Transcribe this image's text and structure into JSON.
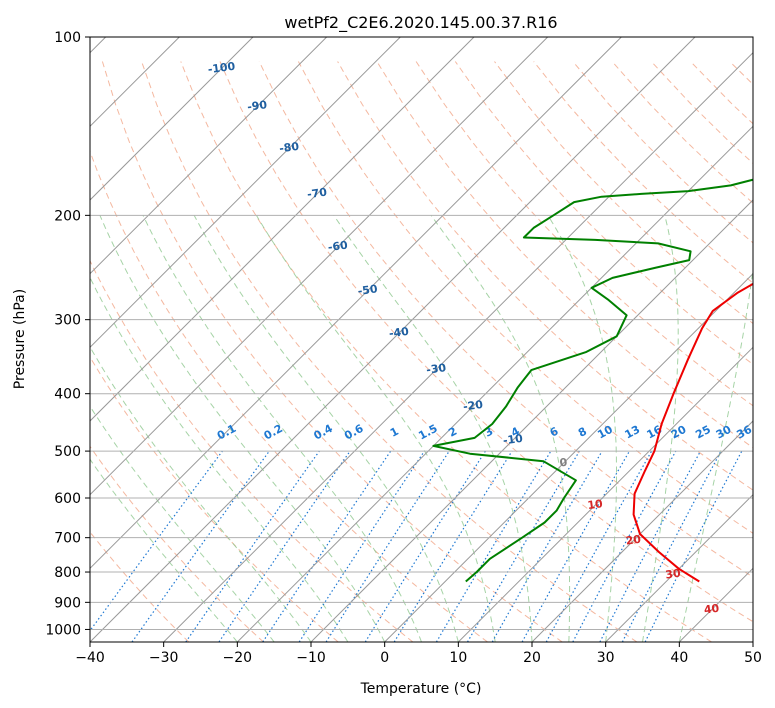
{
  "chart_data": {
    "type": "skew-t",
    "title": "wetPf2_C2E6.2020.145.00.37.R16",
    "xlabel": "Temperature (°C)",
    "ylabel": "Pressure (hPa)",
    "xlim": [
      -40,
      50
    ],
    "ylim": [
      1050,
      100
    ],
    "x_ticks": [
      -40,
      -30,
      -20,
      -10,
      0,
      10,
      20,
      30,
      40,
      50
    ],
    "y_ticks": [
      100,
      200,
      300,
      400,
      500,
      600,
      700,
      800,
      900,
      1000
    ],
    "x_tick_labels": [
      "−40",
      "−30",
      "−20",
      "−10",
      "0",
      "10",
      "20",
      "30",
      "40",
      "50"
    ],
    "y_tick_labels": [
      "100",
      "200",
      "300",
      "400",
      "500",
      "600",
      "700",
      "800",
      "900",
      "1000"
    ],
    "colors": {
      "temperature": "#ee0000",
      "dewpoint": "#008000",
      "isotherm": "#999999",
      "dry_adiabat": "#f0a080",
      "moist_adiabat": "#90c890",
      "mixing_ratio": "#1e78d2",
      "isotherm_label_cold": "#1f5fa0",
      "isotherm_label_warm": "#d62728",
      "isotherm_label_zero": "#808080"
    },
    "series": [
      {
        "name": "Temperature",
        "points": [
          [
            34.5,
            830
          ],
          [
            30,
            790
          ],
          [
            25,
            740
          ],
          [
            20,
            690
          ],
          [
            16.5,
            640
          ],
          [
            13.8,
            590
          ],
          [
            12.1,
            540
          ],
          [
            10.7,
            500
          ],
          [
            8.0,
            450
          ],
          [
            5.5,
            400
          ],
          [
            2.8,
            350
          ],
          [
            0.5,
            310
          ],
          [
            -0.4,
            290
          ],
          [
            0.5,
            270
          ],
          [
            2.5,
            250
          ],
          [
            5.5,
            230
          ],
          [
            9.0,
            215
          ],
          [
            11.5,
            205
          ],
          [
            12.3,
            195
          ],
          [
            12.5,
            180
          ],
          [
            12.4,
            165
          ],
          [
            12.0,
            150
          ],
          [
            11.2,
            140
          ],
          [
            10.6,
            130
          ],
          [
            10.5,
            120
          ],
          [
            11.0,
            112
          ],
          [
            11.2,
            105
          ],
          [
            11.2,
            100
          ]
        ]
      },
      {
        "name": "Dewpoint",
        "points": [
          [
            2.8,
            830
          ],
          [
            3.0,
            800
          ],
          [
            3.0,
            760
          ],
          [
            4.5,
            700
          ],
          [
            5.5,
            660
          ],
          [
            5.5,
            630
          ],
          [
            4.8,
            600
          ],
          [
            4.0,
            560
          ],
          [
            -3.0,
            520
          ],
          [
            -14.0,
            505
          ],
          [
            -20.0,
            490
          ],
          [
            -15.5,
            475
          ],
          [
            -15.0,
            450
          ],
          [
            -15.5,
            420
          ],
          [
            -16.5,
            390
          ],
          [
            -17.0,
            365
          ],
          [
            -12.0,
            340
          ],
          [
            -10.0,
            320
          ],
          [
            -11.5,
            295
          ],
          [
            -16.0,
            278
          ],
          [
            -20.0,
            265
          ],
          [
            -18.5,
            255
          ],
          [
            -14.0,
            245
          ],
          [
            -10.5,
            238
          ],
          [
            -11.5,
            230
          ],
          [
            -17.0,
            223
          ],
          [
            -26.0,
            220
          ],
          [
            -36.0,
            218
          ],
          [
            -36.0,
            210
          ],
          [
            -35.0,
            200
          ],
          [
            -34.0,
            190
          ],
          [
            -31.0,
            186
          ],
          [
            -26.0,
            184
          ],
          [
            -20.0,
            182
          ],
          [
            -15.0,
            178
          ],
          [
            -11.5,
            172
          ],
          [
            -8.5,
            163
          ],
          [
            -6.5,
            153
          ],
          [
            -4.5,
            144
          ],
          [
            -1.5,
            135
          ],
          [
            0.5,
            127
          ],
          [
            2.5,
            120
          ],
          [
            5.0,
            113
          ],
          [
            7.5,
            106
          ],
          [
            9.5,
            100
          ]
        ]
      }
    ],
    "isotherm_labels": [
      {
        "label": "-100",
        "t": -100,
        "p": 113
      },
      {
        "label": "-90",
        "t": -90,
        "p": 131
      },
      {
        "label": "-80",
        "t": -80,
        "p": 154
      },
      {
        "label": "-70",
        "t": -70,
        "p": 184
      },
      {
        "label": "-60",
        "t": -60,
        "p": 226
      },
      {
        "label": "-50",
        "t": -50,
        "p": 268
      },
      {
        "label": "-40",
        "t": -40,
        "p": 316
      },
      {
        "label": "-30",
        "t": -30,
        "p": 364
      },
      {
        "label": "-20",
        "t": -20,
        "p": 420
      },
      {
        "label": "-10",
        "t": -10,
        "p": 479
      },
      {
        "label": "0",
        "t": 0,
        "p": 524
      },
      {
        "label": "10",
        "t": 10,
        "p": 617
      },
      {
        "label": "20",
        "t": 20,
        "p": 708
      },
      {
        "label": "30",
        "t": 30,
        "p": 808
      },
      {
        "label": "40",
        "t": 40,
        "p": 926
      }
    ],
    "mixing_ratio_labels": [
      "0.1",
      "0.2",
      "0.4",
      "0.6",
      "1",
      "1.5",
      "2",
      "3",
      "4",
      "6",
      "8",
      "10",
      "13",
      "16",
      "20",
      "25",
      "30",
      "36"
    ],
    "mixing_ratio_values": [
      0.1,
      0.2,
      0.4,
      0.6,
      1,
      1.5,
      2,
      3,
      4,
      6,
      8,
      10,
      13,
      16,
      20,
      25,
      30,
      36
    ]
  }
}
